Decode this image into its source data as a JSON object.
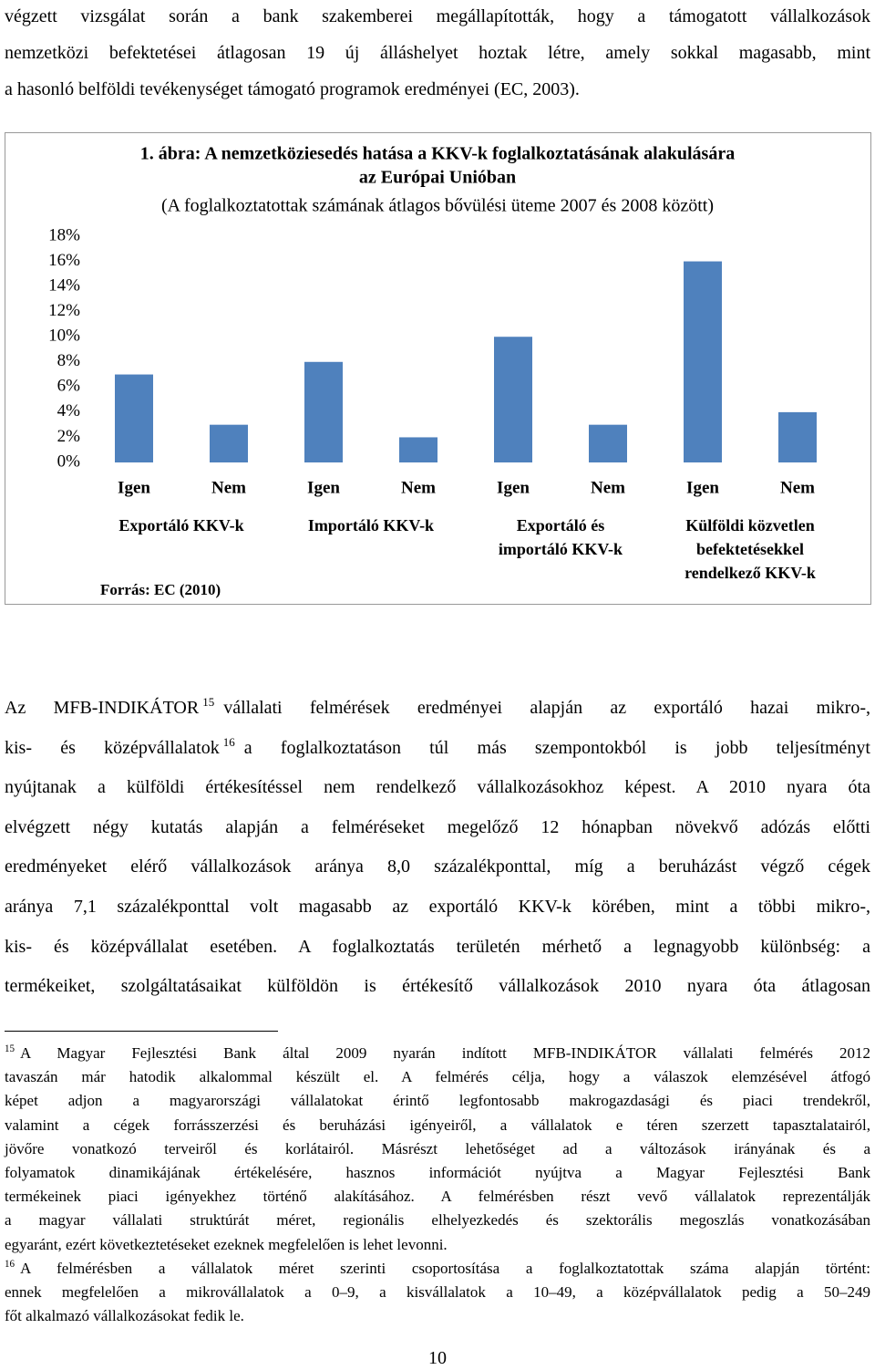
{
  "intro": {
    "lines": [
      "végzett vizsgálat során a bank szakemberei megállapították, hogy a támogatott vállalkozások",
      "nemzetközi befektetései átlagosan 19 új álláshelyet hoztak létre, amely sokkal magasabb, mint",
      "a hasonló belföldi tevékenységet támogató programok eredményei (EC, 2003)."
    ]
  },
  "chart_data": {
    "type": "bar",
    "title": [
      "1. ábra: A nemzetköziesedés hatása a KKV-k foglalkoztatásának alakulására",
      "az Európai Unióban"
    ],
    "subtitle": "(A foglalkoztatottak számának átlagos bővülési üteme 2007 és 2008 között)",
    "categories": [
      "Igen",
      "Nem",
      "Igen",
      "Nem",
      "Igen",
      "Nem",
      "Igen",
      "Nem"
    ],
    "groups": [
      [
        "Exportáló KKV-k"
      ],
      [
        "Importáló KKV-k"
      ],
      [
        "Exportáló és",
        "importáló KKV-k"
      ],
      [
        "Külföldi közvetlen",
        "befektetésekkel",
        "rendelkező KKV-k"
      ]
    ],
    "values": [
      7,
      3,
      8,
      2,
      10,
      3,
      16,
      4
    ],
    "color": "#4f81bd",
    "ylim": [
      0,
      18
    ],
    "yticks": [
      {
        "value": 0,
        "label": "0%"
      },
      {
        "value": 2,
        "label": "2%"
      },
      {
        "value": 4,
        "label": "4%"
      },
      {
        "value": 6,
        "label": "6%"
      },
      {
        "value": 8,
        "label": "8%"
      },
      {
        "value": 10,
        "label": "10%"
      },
      {
        "value": 12,
        "label": "12%"
      },
      {
        "value": 14,
        "label": "14%"
      },
      {
        "value": 16,
        "label": "16%"
      },
      {
        "value": 18,
        "label": "18%"
      }
    ],
    "grid": false,
    "source": "Forrás: EC (2010)"
  },
  "body": {
    "lines": [
      {
        "text": "Az MFB-INDIKÁTOR",
        "sup": "15",
        "after": "vállalati felmérések eredményei alapján az exportáló hazai mikro-,"
      },
      {
        "text": "kis- és középvállalatok",
        "sup": "16",
        "after": "a foglalkoztatáson túl más szempontokból is jobb teljesítményt"
      },
      {
        "text": "nyújtanak a külföldi értékesítéssel nem rendelkező vállalkozásokhoz képest. A 2010 nyara óta"
      },
      {
        "text": "elvégzett négy kutatás alapján a felméréseket megelőző 12 hónapban növekvő adózás előtti"
      },
      {
        "text": "eredményeket elérő vállalkozások aránya 8,0 százalékponttal, míg a beruházást végző cégek"
      },
      {
        "text": "aránya 7,1 százalékponttal volt magasabb az exportáló KKV-k körében, mint a többi mikro-,"
      },
      {
        "text": "kis- és középvállalat esetében. A foglalkoztatás területén mérhető a legnagyobb különbség: a"
      },
      {
        "text": "termékeiket, szolgáltatásaikat külföldön is értékesítő vállalkozások 2010 nyara óta átlagosan"
      }
    ]
  },
  "footnotes": [
    {
      "number": "15",
      "lines": [
        "A Magyar Fejlesztési Bank által 2009 nyarán indított MFB-INDIKÁTOR vállalati felmérés 2012",
        "tavaszán már hatodik alkalommal készült el. A felmérés célja, hogy a válaszok elemzésével átfogó",
        "képet adjon a magyarországi vállalatokat érintő legfontosabb makrogazdasági és piaci trendekről,",
        "valamint a cégek forrásszerzési és beruházási igényeiről, a vállalatok e téren szerzett tapasztalatairól,",
        "jövőre vonatkozó terveiről és korlátairól. Másrészt lehetőséget ad a változások irányának és a",
        "folyamatok dinamikájának értékelésére, hasznos információt nyújtva a Magyar Fejlesztési Bank",
        "termékeinek piaci igényekhez történő alakításához. A felmérésben részt vevő vállalatok reprezentálják",
        "a magyar vállalati struktúrát méret, regionális elhelyezkedés és szektorális megoszlás vonatkozásában",
        "egyaránt, ezért következtetéseket ezeknek megfelelően is lehet levonni."
      ]
    },
    {
      "number": "16",
      "lines": [
        "A felmérésben a vállalatok méret szerinti csoportosítása a foglalkoztatottak száma alapján történt:",
        "ennek megfelelően a mikrovállalatok a 0–9, a kisvállalatok a 10–49, a középvállalatok pedig a 50–249",
        "főt alkalmazó vállalkozásokat fedik le."
      ]
    }
  ],
  "page_number": "10"
}
